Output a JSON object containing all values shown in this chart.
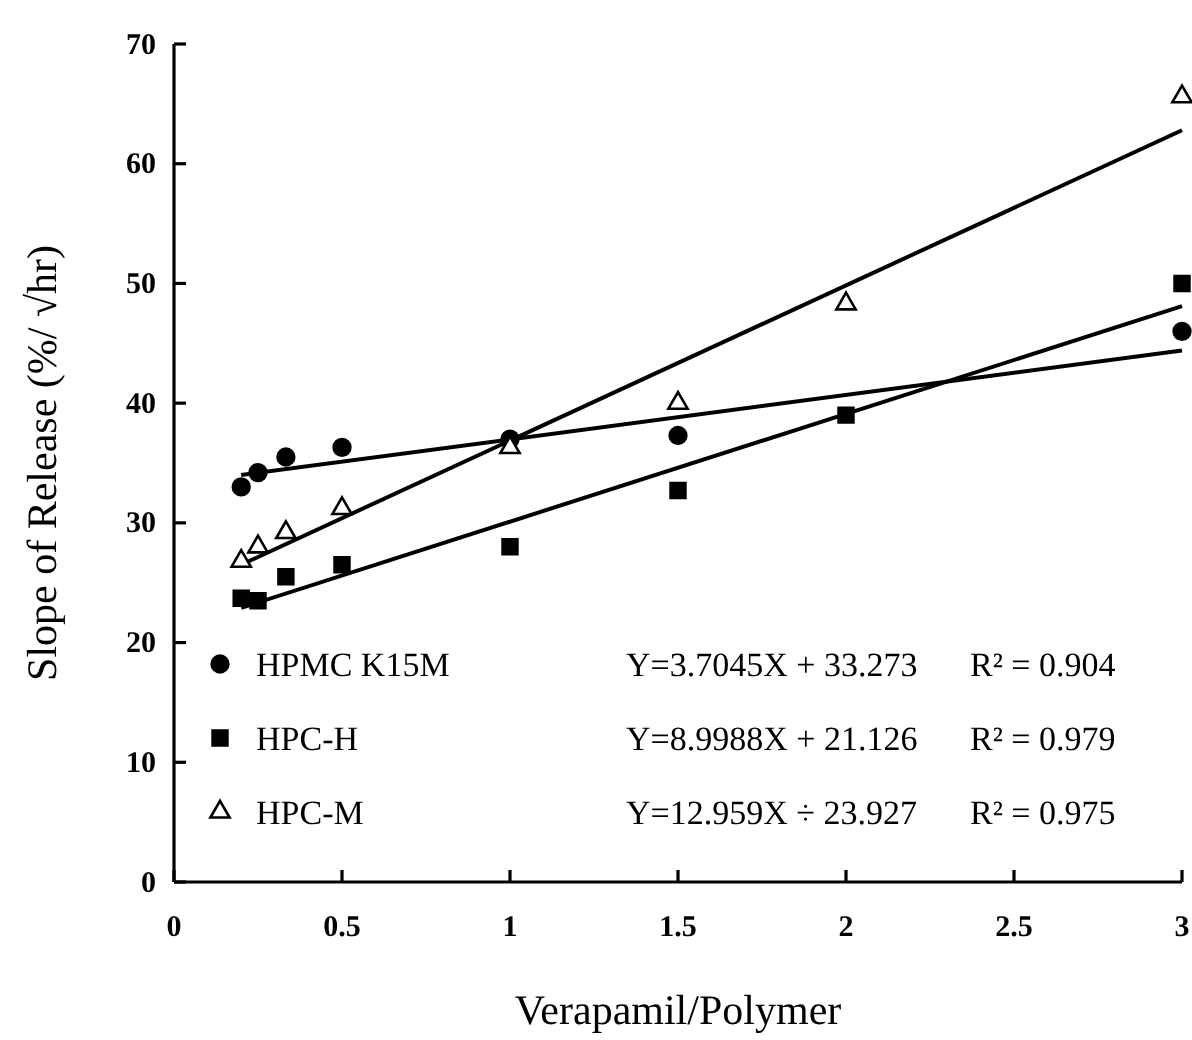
{
  "chart_data": {
    "type": "scatter",
    "xlabel": "Verapamil/Polymer",
    "ylabel": "Slope of Release (%/ √hr)",
    "xlim": [
      0,
      3
    ],
    "ylim": [
      0,
      70
    ],
    "xticks": [
      0,
      0.5,
      1,
      1.5,
      2,
      2.5,
      3
    ],
    "yticks": [
      0,
      10,
      20,
      30,
      40,
      50,
      60,
      70
    ],
    "grid": false,
    "legend": "bottom left",
    "series": [
      {
        "name": "HPMC K15M",
        "color": "#000000",
        "marker": "circle",
        "x": [
          0.2,
          0.25,
          0.333,
          0.5,
          1,
          1.5,
          3
        ],
        "values": [
          33,
          34.2,
          35.5,
          36.3,
          37,
          37.3,
          46
        ]
      },
      {
        "name": "HPC-H",
        "color": "#000000",
        "marker": "square",
        "x": [
          0.2,
          0.25,
          0.333,
          0.5,
          1,
          1.5,
          2,
          3
        ],
        "values": [
          23.7,
          23.5,
          25.5,
          26.5,
          28,
          32.7,
          39,
          50
        ]
      },
      {
        "name": "HPC-M",
        "color": "#000000",
        "marker": "triangle",
        "x": [
          0.2,
          0.25,
          0.333,
          0.5,
          1,
          1.5,
          2,
          3
        ],
        "values": [
          26.8,
          28,
          29.2,
          31.2,
          36.3,
          40,
          48.3,
          65.6
        ]
      },
      {
        "type": "line",
        "color": "#000000",
        "x": [
          0.2,
          3
        ],
        "values": [
          34.0,
          44.4
        ]
      },
      {
        "type": "line",
        "color": "#000000",
        "x": [
          0.2,
          3
        ],
        "values": [
          22.9,
          48.1
        ]
      },
      {
        "type": "line",
        "color": "#000000",
        "x": [
          0.2,
          3
        ],
        "values": [
          26.5,
          62.8
        ]
      }
    ],
    "annotations": [
      "Y=3.7045X + 33.273",
      "R² = 0.904",
      "Y=8.9988X + 21.126",
      "R² = 0.979",
      "Y=12.959X ÷ 23.927",
      "R² = 0.975"
    ]
  }
}
